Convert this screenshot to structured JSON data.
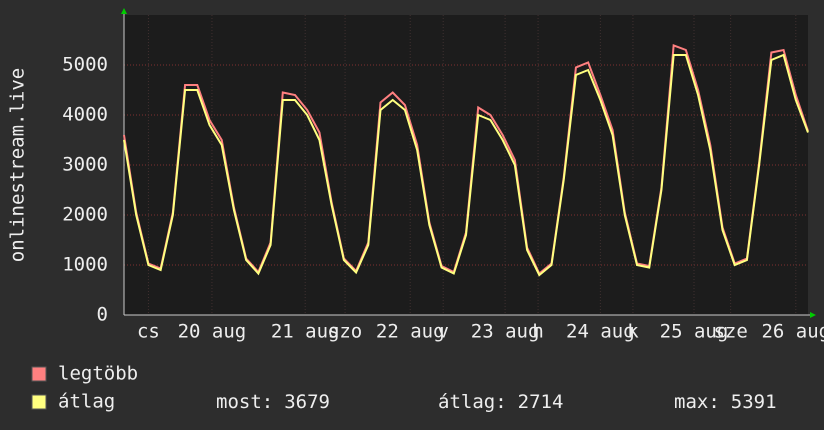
{
  "chart_data": {
    "type": "line",
    "y_label": "onlinestream.live",
    "x": [
      0,
      3,
      6,
      9,
      12,
      15,
      18,
      21,
      24,
      27,
      30,
      33,
      36,
      39,
      42,
      45,
      48,
      51,
      54,
      57,
      60,
      63,
      66,
      69,
      72,
      75,
      78,
      81,
      84,
      87,
      90,
      93,
      96,
      99,
      102,
      105,
      108,
      111,
      114,
      117,
      120,
      123,
      126,
      129,
      132,
      135,
      138,
      141,
      144,
      147,
      150,
      153,
      156,
      159,
      162,
      165,
      168
    ],
    "series": [
      {
        "name": "legtöbb",
        "color": "#ff8080",
        "values": [
          3600,
          2050,
          1030,
          930,
          2050,
          4600,
          4600,
          3900,
          3500,
          2150,
          1130,
          860,
          1450,
          4450,
          4400,
          4100,
          3650,
          2250,
          1130,
          880,
          1450,
          4250,
          4450,
          4200,
          3400,
          1850,
          980,
          860,
          1650,
          4150,
          4000,
          3600,
          3100,
          1350,
          830,
          1030,
          2750,
          4950,
          5050,
          4400,
          3700,
          2050,
          1030,
          980,
          2550,
          5391,
          5300,
          4500,
          3400,
          1750,
          1030,
          1130,
          3050,
          5250,
          5300,
          4400,
          3679
        ]
      },
      {
        "name": "átlag",
        "color": "#ffff80",
        "values": [
          3500,
          2000,
          1000,
          900,
          2000,
          4500,
          4500,
          3800,
          3400,
          2100,
          1100,
          830,
          1400,
          4300,
          4300,
          4000,
          3500,
          2200,
          1100,
          850,
          1400,
          4100,
          4300,
          4100,
          3300,
          1800,
          950,
          830,
          1600,
          4000,
          3900,
          3500,
          3000,
          1300,
          800,
          1000,
          2700,
          4800,
          4900,
          4300,
          3600,
          2000,
          1000,
          950,
          2500,
          5200,
          5200,
          4400,
          3300,
          1700,
          1000,
          1100,
          3000,
          5100,
          5200,
          4300,
          3650
        ]
      }
    ],
    "xlim": [
      0,
      168
    ],
    "xticks": [
      {
        "value": 6,
        "label": "cs"
      },
      {
        "value": 21.6,
        "label": "20 aug"
      },
      {
        "value": 44.5,
        "label": "21 aug"
      },
      {
        "value": 54.3,
        "label": "szo"
      },
      {
        "value": 70.3,
        "label": "22 aug"
      },
      {
        "value": 78.4,
        "label": "v"
      },
      {
        "value": 93.6,
        "label": "23 aug"
      },
      {
        "value": 101.7,
        "label": "h"
      },
      {
        "value": 117,
        "label": "24 aug"
      },
      {
        "value": 125,
        "label": "k"
      },
      {
        "value": 140,
        "label": "25 aug"
      },
      {
        "value": 149,
        "label": "sze"
      },
      {
        "value": 165,
        "label": "26 aug"
      }
    ],
    "ylim": [
      0,
      6000
    ],
    "yticks": [
      0,
      1000,
      2000,
      3000,
      4000,
      5000
    ],
    "grid": true,
    "stats": [
      {
        "label": "most:",
        "value": 3679
      },
      {
        "label": "átlag:",
        "value": 2714
      },
      {
        "label": "max:",
        "value": 5391
      }
    ]
  }
}
